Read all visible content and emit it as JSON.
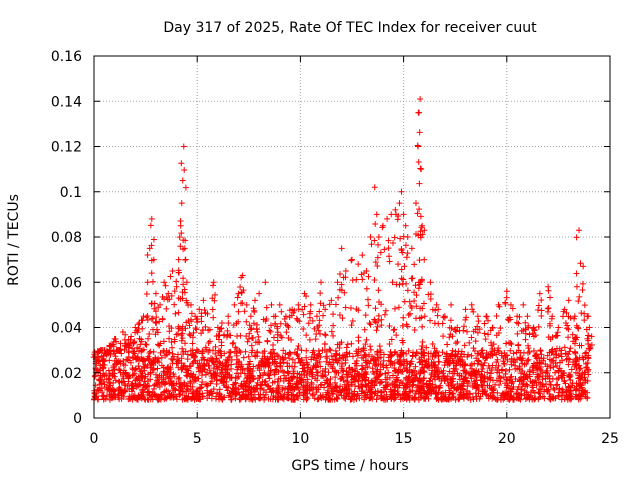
{
  "chart_data": {
    "type": "scatter",
    "title": "Day 317 of 2025, Rate Of TEC Index for receiver cuut",
    "xlabel": "GPS time / hours",
    "ylabel": "ROTI / TECUs",
    "xlim": [
      0,
      25
    ],
    "ylim": [
      0,
      0.16
    ],
    "xticks": [
      "0",
      "5",
      "10",
      "15",
      "20",
      "25"
    ],
    "yticks": [
      "0",
      "0.02",
      "0.04",
      "0.06",
      "0.08",
      "0.1",
      "0.12",
      "0.14",
      "0.16"
    ],
    "grid": true,
    "marker": "plus",
    "color": "#ff0000",
    "series": [
      {
        "x": [
          0.1,
          0.2,
          0.4,
          0.6,
          0.8,
          1.0,
          1.2,
          1.4,
          1.6,
          1.8,
          2.0,
          2.2,
          2.4,
          2.6,
          2.7,
          2.8,
          2.9,
          3.0,
          3.2,
          3.4,
          3.6,
          3.8,
          4.0,
          4.1,
          4.2,
          4.25,
          4.3,
          4.35,
          4.4,
          4.5,
          4.7,
          4.9,
          5.1,
          5.3,
          5.5,
          5.8,
          6.0,
          6.2,
          6.5,
          6.8,
          7.0,
          7.2,
          7.4,
          7.6,
          7.8,
          8.0,
          8.3,
          8.6,
          8.8,
          9.0,
          9.3,
          9.6,
          9.9,
          10.2,
          10.5,
          10.8,
          11.0,
          11.2,
          11.5,
          11.8,
          12.0,
          12.2,
          12.5,
          12.8,
          13.0,
          13.2,
          13.4,
          13.6,
          13.7,
          13.8,
          14.0,
          14.2,
          14.4,
          14.6,
          14.8,
          14.9,
          15.0,
          15.1,
          15.2,
          15.4,
          15.6,
          15.7,
          15.75,
          15.8,
          15.85,
          15.9,
          16.0,
          16.3,
          16.6,
          17.0,
          17.3,
          17.6,
          18.0,
          18.3,
          18.6,
          19.0,
          19.3,
          19.6,
          20.0,
          20.2,
          20.5,
          20.8,
          21.0,
          21.3,
          21.6,
          22.0,
          22.2,
          22.5,
          22.8,
          23.0,
          23.3,
          23.4,
          23.5,
          23.7,
          23.9,
          24.0
        ],
        "y": [
          0.025,
          0.02,
          0.03,
          0.028,
          0.032,
          0.035,
          0.03,
          0.038,
          0.033,
          0.036,
          0.04,
          0.042,
          0.045,
          0.06,
          0.075,
          0.088,
          0.07,
          0.055,
          0.05,
          0.06,
          0.055,
          0.065,
          0.058,
          0.07,
          0.085,
          0.095,
          0.105,
          0.12,
          0.075,
          0.06,
          0.05,
          0.045,
          0.048,
          0.052,
          0.046,
          0.06,
          0.04,
          0.042,
          0.045,
          0.05,
          0.055,
          0.063,
          0.05,
          0.045,
          0.052,
          0.055,
          0.06,
          0.05,
          0.045,
          0.05,
          0.045,
          0.048,
          0.05,
          0.055,
          0.05,
          0.045,
          0.06,
          0.048,
          0.052,
          0.06,
          0.075,
          0.065,
          0.07,
          0.068,
          0.072,
          0.065,
          0.08,
          0.102,
          0.09,
          0.08,
          0.085,
          0.088,
          0.09,
          0.092,
          0.095,
          0.1,
          0.09,
          0.085,
          0.08,
          0.075,
          0.095,
          0.12,
          0.135,
          0.141,
          0.11,
          0.085,
          0.07,
          0.06,
          0.05,
          0.045,
          0.05,
          0.04,
          0.048,
          0.05,
          0.045,
          0.045,
          0.04,
          0.05,
          0.056,
          0.05,
          0.045,
          0.05,
          0.045,
          0.04,
          0.055,
          0.058,
          0.045,
          0.04,
          0.048,
          0.052,
          0.045,
          0.058,
          0.083,
          0.067,
          0.045,
          0.04
        ]
      }
    ],
    "baseline_band": [
      0.008,
      0.03
    ]
  }
}
